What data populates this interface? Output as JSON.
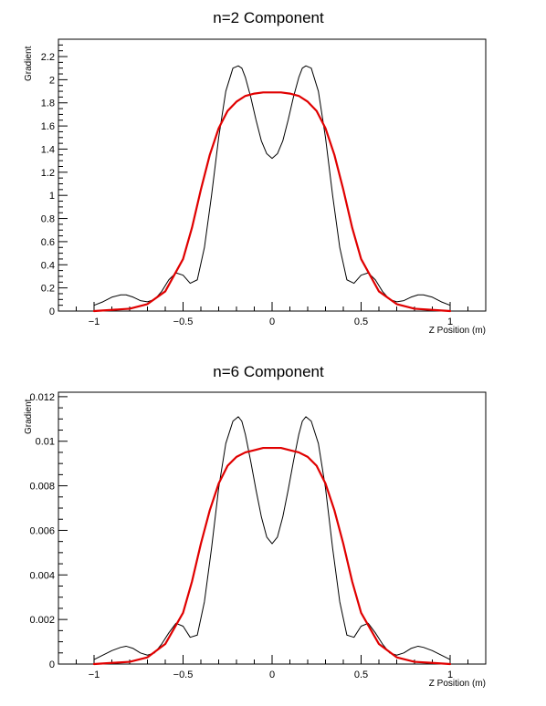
{
  "chart_data": [
    {
      "type": "line",
      "title": "n=2 Component",
      "xlabel": "Z Position (m)",
      "ylabel": "Gradient",
      "xlim": [
        -1.2,
        1.2
      ],
      "ylim": [
        0,
        2.35
      ],
      "xticks": [
        -1,
        -0.5,
        0,
        0.5,
        1
      ],
      "xtick_labels": [
        "−1",
        "−0.5",
        "0",
        "0.5",
        "1"
      ],
      "yticks": [
        0,
        0.2,
        0.4,
        0.6,
        0.8,
        1,
        1.2,
        1.4,
        1.6,
        1.8,
        2,
        2.2
      ],
      "ytick_labels": [
        "0",
        "0.2",
        "0.4",
        "0.6",
        "0.8",
        "1",
        "1.2",
        "1.4",
        "1.6",
        "1.8",
        "2",
        "2.2"
      ],
      "series": [
        {
          "color": "#000000",
          "x": [
            -1.0,
            -0.95,
            -0.9,
            -0.85,
            -0.82,
            -0.78,
            -0.74,
            -0.7,
            -0.66,
            -0.62,
            -0.58,
            -0.54,
            -0.5,
            -0.46,
            -0.42,
            -0.38,
            -0.34,
            -0.3,
            -0.26,
            -0.22,
            -0.19,
            -0.17,
            -0.15,
            -0.12,
            -0.09,
            -0.06,
            -0.03,
            0.0,
            0.03,
            0.06,
            0.09,
            0.12,
            0.15,
            0.17,
            0.19,
            0.22,
            0.26,
            0.3,
            0.34,
            0.38,
            0.42,
            0.46,
            0.5,
            0.54,
            0.58,
            0.62,
            0.66,
            0.7,
            0.74,
            0.78,
            0.82,
            0.85,
            0.9,
            0.95,
            1.0
          ],
          "y": [
            0.05,
            0.08,
            0.12,
            0.14,
            0.14,
            0.12,
            0.09,
            0.08,
            0.1,
            0.17,
            0.27,
            0.33,
            0.31,
            0.24,
            0.27,
            0.55,
            1.0,
            1.5,
            1.9,
            2.1,
            2.12,
            2.1,
            2.02,
            1.85,
            1.65,
            1.47,
            1.36,
            1.32,
            1.36,
            1.47,
            1.65,
            1.85,
            2.02,
            2.1,
            2.12,
            2.1,
            1.9,
            1.5,
            1.0,
            0.55,
            0.27,
            0.24,
            0.31,
            0.33,
            0.27,
            0.17,
            0.1,
            0.08,
            0.09,
            0.12,
            0.14,
            0.14,
            0.12,
            0.08,
            0.05
          ]
        },
        {
          "color": "#e00000",
          "x": [
            -1.0,
            -0.9,
            -0.8,
            -0.7,
            -0.6,
            -0.5,
            -0.45,
            -0.4,
            -0.35,
            -0.3,
            -0.25,
            -0.2,
            -0.15,
            -0.1,
            -0.05,
            0.0,
            0.05,
            0.1,
            0.15,
            0.2,
            0.25,
            0.3,
            0.35,
            0.4,
            0.45,
            0.5,
            0.6,
            0.7,
            0.8,
            0.9,
            1.0
          ],
          "y": [
            0.0,
            0.01,
            0.02,
            0.06,
            0.17,
            0.45,
            0.72,
            1.05,
            1.35,
            1.58,
            1.73,
            1.81,
            1.86,
            1.88,
            1.89,
            1.89,
            1.89,
            1.88,
            1.86,
            1.81,
            1.73,
            1.58,
            1.35,
            1.05,
            0.72,
            0.45,
            0.17,
            0.06,
            0.02,
            0.01,
            0.0
          ]
        }
      ]
    },
    {
      "type": "line",
      "title": "n=6 Component",
      "xlabel": "Z Position (m)",
      "ylabel": "Gradient",
      "xlim": [
        -1.2,
        1.2
      ],
      "ylim": [
        0,
        0.0122
      ],
      "xticks": [
        -1,
        -0.5,
        0,
        0.5,
        1
      ],
      "xtick_labels": [
        "−1",
        "−0.5",
        "0",
        "0.5",
        "1"
      ],
      "yticks": [
        0,
        0.002,
        0.004,
        0.006,
        0.008,
        0.01,
        0.012
      ],
      "ytick_labels": [
        "0",
        "0.002",
        "0.004",
        "0.006",
        "0.008",
        "0.01",
        "0.012"
      ],
      "series": [
        {
          "color": "#000000",
          "x": [
            -1.0,
            -0.95,
            -0.9,
            -0.85,
            -0.82,
            -0.78,
            -0.74,
            -0.7,
            -0.66,
            -0.62,
            -0.58,
            -0.54,
            -0.5,
            -0.46,
            -0.42,
            -0.38,
            -0.34,
            -0.3,
            -0.26,
            -0.22,
            -0.19,
            -0.17,
            -0.15,
            -0.12,
            -0.09,
            -0.06,
            -0.03,
            0.0,
            0.03,
            0.06,
            0.09,
            0.12,
            0.15,
            0.17,
            0.19,
            0.22,
            0.26,
            0.3,
            0.34,
            0.38,
            0.42,
            0.46,
            0.5,
            0.54,
            0.58,
            0.62,
            0.66,
            0.7,
            0.74,
            0.78,
            0.82,
            0.85,
            0.9,
            0.95,
            1.0
          ],
          "y": [
            0.0002,
            0.0004,
            0.0006,
            0.00075,
            0.0008,
            0.0007,
            0.0005,
            0.0004,
            0.0005,
            0.0009,
            0.0014,
            0.00183,
            0.0017,
            0.0012,
            0.0013,
            0.0028,
            0.0052,
            0.0079,
            0.0099,
            0.0109,
            0.0111,
            0.0109,
            0.0103,
            0.0091,
            0.0078,
            0.0066,
            0.0057,
            0.0054,
            0.0057,
            0.0066,
            0.0078,
            0.0091,
            0.0103,
            0.0109,
            0.0111,
            0.0109,
            0.0099,
            0.0079,
            0.0052,
            0.0028,
            0.0013,
            0.0012,
            0.0017,
            0.00183,
            0.0014,
            0.0009,
            0.0005,
            0.0004,
            0.0005,
            0.0007,
            0.0008,
            0.00075,
            0.0006,
            0.0004,
            0.0002
          ]
        },
        {
          "color": "#e00000",
          "x": [
            -1.0,
            -0.9,
            -0.8,
            -0.7,
            -0.6,
            -0.5,
            -0.45,
            -0.4,
            -0.35,
            -0.3,
            -0.25,
            -0.2,
            -0.15,
            -0.1,
            -0.05,
            0.0,
            0.05,
            0.1,
            0.15,
            0.2,
            0.25,
            0.3,
            0.35,
            0.4,
            0.45,
            0.5,
            0.6,
            0.7,
            0.8,
            0.9,
            1.0
          ],
          "y": [
            0.0,
            5e-05,
            0.0001,
            0.0003,
            0.0009,
            0.0023,
            0.0037,
            0.0054,
            0.0069,
            0.0081,
            0.0089,
            0.0093,
            0.0095,
            0.0096,
            0.0097,
            0.0097,
            0.0097,
            0.0096,
            0.0095,
            0.0093,
            0.0089,
            0.0081,
            0.0069,
            0.0054,
            0.0037,
            0.0023,
            0.0009,
            0.0003,
            0.0001,
            5e-05,
            0.0
          ]
        }
      ]
    }
  ]
}
